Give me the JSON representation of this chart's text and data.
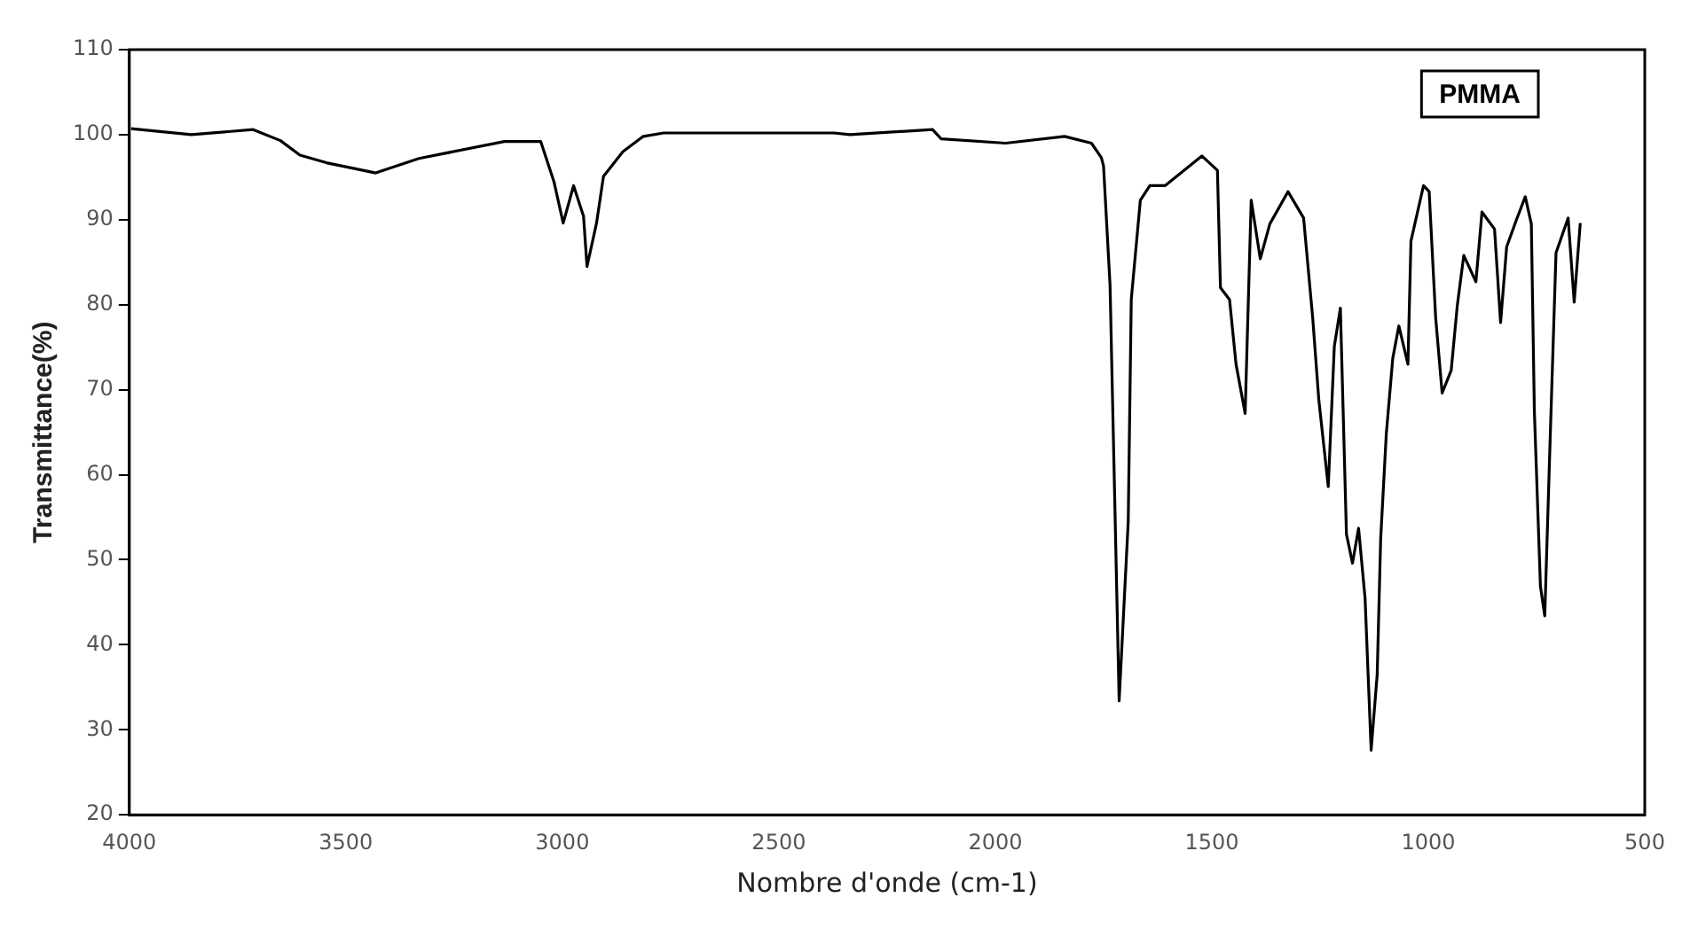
{
  "chart_data": {
    "type": "line",
    "xlabel": "Nombre d'onde (cm-1)",
    "ylabel": "Transmittance(%)",
    "annotations": [
      "PMMA"
    ],
    "xlim": [
      4000,
      500
    ],
    "xticks": [
      4000,
      3500,
      3000,
      2500,
      2000,
      1500,
      1000,
      500
    ],
    "ylim": [
      20,
      110
    ],
    "yticks": [
      20,
      30,
      40,
      50,
      60,
      70,
      80,
      90,
      100,
      110
    ],
    "grid": false,
    "legend": false,
    "series": [
      {
        "color": "#000000",
        "x": [
          3996,
          3857,
          3714,
          3651,
          3606,
          3545,
          3431,
          3331,
          3134,
          3050,
          3019,
          2998,
          2974,
          2951,
          2943,
          2921,
          2905,
          2860,
          2813,
          2766,
          2373,
          2336,
          2145,
          2125,
          1976,
          1840,
          1778,
          1755,
          1750,
          1735,
          1714,
          1693,
          1686,
          1665,
          1643,
          1608,
          1523,
          1487,
          1480,
          1459,
          1444,
          1423,
          1409,
          1388,
          1366,
          1324,
          1288,
          1267,
          1253,
          1231,
          1217,
          1203,
          1189,
          1175,
          1161,
          1146,
          1132,
          1118,
          1110,
          1097,
          1082,
          1068,
          1047,
          1040,
          1011,
          998,
          983,
          968,
          947,
          933,
          918,
          890,
          876,
          847,
          833,
          819,
          797,
          776,
          762,
          755,
          741,
          731,
          719,
          705,
          677,
          663,
          649
        ],
        "values": [
          100.7,
          100,
          100.6,
          99.3,
          97.6,
          96.7,
          95.5,
          97.2,
          99.2,
          99.2,
          94.4,
          89.6,
          94,
          90.4,
          84.5,
          89.6,
          95.1,
          98,
          99.8,
          100.2,
          100.2,
          100,
          100.6,
          99.5,
          99,
          99.8,
          99,
          97.3,
          96.3,
          82.3,
          33.4,
          54.5,
          80.6,
          92.3,
          94,
          94,
          97.5,
          95.8,
          82,
          80.6,
          73,
          67.2,
          92.3,
          85.4,
          89.5,
          93.3,
          90.2,
          78.5,
          68.9,
          58.6,
          75.1,
          79.6,
          53,
          49.6,
          53.7,
          45.5,
          27.6,
          36.5,
          52.4,
          64.8,
          73.7,
          77.5,
          73,
          87.5,
          94,
          93.3,
          78.5,
          69.6,
          72.3,
          79.9,
          85.8,
          82.7,
          90.9,
          88.9,
          77.9,
          86.8,
          89.9,
          92.7,
          89.5,
          67.5,
          46.9,
          43.4,
          63.4,
          86.1,
          90.2,
          80.3,
          89.6
        ]
      }
    ]
  }
}
